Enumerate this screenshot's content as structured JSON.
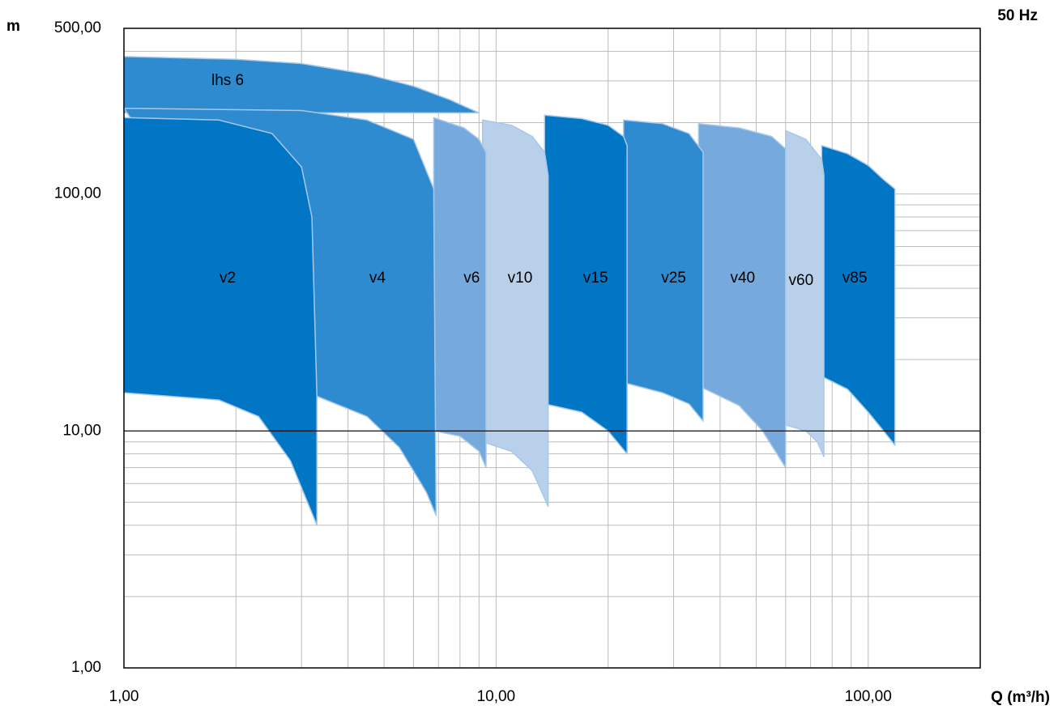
{
  "chart_data": {
    "type": "area",
    "title": "",
    "frequency_label": "50 Hz",
    "xlabel": "Q (m³/h)",
    "ylabel": "m",
    "xscale": "log",
    "yscale": "log",
    "xlim": [
      1,
      200
    ],
    "ylim": [
      1,
      500
    ],
    "x_tick_labels": [
      {
        "value": 1,
        "label": "1,00"
      },
      {
        "value": 10,
        "label": "10,00"
      },
      {
        "value": 100,
        "label": "100,00"
      }
    ],
    "y_tick_labels": [
      {
        "value": 1,
        "label": "1,00"
      },
      {
        "value": 10,
        "label": "10,00"
      },
      {
        "value": 100,
        "label": "100,00"
      },
      {
        "value": 500,
        "label": "500,00"
      }
    ],
    "grid": true,
    "colors": {
      "dark": "#0076c5",
      "medium": "#2f8bcf",
      "light": "#76a9dc",
      "pale": "#b9d0eb",
      "edge": "#a8c8ea"
    },
    "series": [
      {
        "name": "lhs 6",
        "color": "medium",
        "upper": [
          [
            1.0,
            380
          ],
          [
            2.0,
            370
          ],
          [
            3.0,
            355
          ],
          [
            4.5,
            320
          ],
          [
            6.0,
            285
          ],
          [
            7.5,
            250
          ],
          [
            9.0,
            220
          ]
        ],
        "lower": [
          [
            1.0,
            220
          ],
          [
            9.0,
            220
          ]
        ]
      },
      {
        "name": "v85",
        "color": "dark",
        "upper": [
          [
            75,
            160
          ],
          [
            88,
            148
          ],
          [
            100,
            132
          ],
          [
            110,
            115
          ],
          [
            118,
            105
          ]
        ],
        "lower": [
          [
            75,
            17
          ],
          [
            88,
            15
          ],
          [
            100,
            12
          ],
          [
            110,
            10
          ],
          [
            118,
            8.7
          ]
        ]
      },
      {
        "name": "v60",
        "color": "pale",
        "upper": [
          [
            60,
            185
          ],
          [
            68,
            170
          ],
          [
            75,
            140
          ],
          [
            76,
            120
          ]
        ],
        "lower": [
          [
            60,
            10.6
          ],
          [
            68,
            10.0
          ],
          [
            73,
            9.0
          ],
          [
            76,
            7.8
          ]
        ]
      },
      {
        "name": "v40",
        "color": "light",
        "upper": [
          [
            35,
            198
          ],
          [
            45,
            190
          ],
          [
            55,
            175
          ],
          [
            60,
            155
          ]
        ],
        "lower": [
          [
            35,
            15.5
          ],
          [
            45,
            12.8
          ],
          [
            52,
            10.0
          ],
          [
            60,
            7.0
          ]
        ]
      },
      {
        "name": "v25",
        "color": "medium",
        "upper": [
          [
            22,
            205
          ],
          [
            28,
            198
          ],
          [
            33,
            180
          ],
          [
            36,
            150
          ]
        ],
        "lower": [
          [
            22,
            16
          ],
          [
            28,
            14.5
          ],
          [
            33,
            13
          ],
          [
            36,
            11
          ]
        ]
      },
      {
        "name": "v15",
        "color": "dark",
        "upper": [
          [
            13.5,
            215
          ],
          [
            17,
            208
          ],
          [
            20,
            195
          ],
          [
            22,
            175
          ],
          [
            22.5,
            160
          ]
        ],
        "lower": [
          [
            13.5,
            13
          ],
          [
            17,
            12
          ],
          [
            20,
            10
          ],
          [
            22.5,
            8
          ]
        ]
      },
      {
        "name": "v10",
        "color": "pale",
        "upper": [
          [
            9.2,
            205
          ],
          [
            11,
            195
          ],
          [
            12.5,
            175
          ],
          [
            13.5,
            150
          ],
          [
            13.8,
            120
          ]
        ],
        "lower": [
          [
            9.2,
            9
          ],
          [
            11,
            8.2
          ],
          [
            12.5,
            6.8
          ],
          [
            13.5,
            5.2
          ],
          [
            13.8,
            4.8
          ]
        ]
      },
      {
        "name": "v6",
        "color": "light",
        "upper": [
          [
            6.8,
            210
          ],
          [
            8.2,
            190
          ],
          [
            9.0,
            170
          ],
          [
            9.4,
            150
          ]
        ],
        "lower": [
          [
            6.8,
            10
          ],
          [
            8.0,
            9.5
          ],
          [
            9.0,
            8.2
          ],
          [
            9.4,
            7.0
          ]
        ]
      },
      {
        "name": "v4",
        "color": "medium",
        "upper": [
          [
            1.0,
            230
          ],
          [
            3.0,
            225
          ],
          [
            4.5,
            205
          ],
          [
            6.0,
            170
          ],
          [
            6.8,
            105
          ]
        ],
        "lower": [
          [
            3.3,
            14
          ],
          [
            4.5,
            11.5
          ],
          [
            5.5,
            8.5
          ],
          [
            6.5,
            5.5
          ],
          [
            6.9,
            4.4
          ]
        ]
      },
      {
        "name": "v2",
        "color": "dark",
        "upper": [
          [
            1.0,
            210
          ],
          [
            1.8,
            205
          ],
          [
            2.5,
            180
          ],
          [
            3.0,
            130
          ],
          [
            3.2,
            80
          ],
          [
            3.3,
            14
          ]
        ],
        "lower": [
          [
            1.0,
            14.5
          ],
          [
            1.8,
            13.5
          ],
          [
            2.3,
            11.5
          ],
          [
            2.8,
            7.5
          ],
          [
            3.3,
            4.0
          ]
        ]
      }
    ],
    "series_labels": [
      {
        "name": "lhs 6",
        "text": "lhs 6",
        "x": 1.9,
        "y": 300
      },
      {
        "name": "v2",
        "text": "v2",
        "x": 1.9,
        "y": 44
      },
      {
        "name": "v4",
        "text": "v4",
        "x": 4.8,
        "y": 44
      },
      {
        "name": "v6",
        "text": "v6",
        "x": 8.6,
        "y": 44
      },
      {
        "name": "v10",
        "text": "v10",
        "x": 11.6,
        "y": 44
      },
      {
        "name": "v15",
        "text": "v15",
        "x": 18.5,
        "y": 44
      },
      {
        "name": "v25",
        "text": "v25",
        "x": 30,
        "y": 44
      },
      {
        "name": "v40",
        "text": "v40",
        "x": 46,
        "y": 44
      },
      {
        "name": "v60",
        "text": "v60",
        "x": 66,
        "y": 43
      },
      {
        "name": "v85",
        "text": "v85",
        "x": 92,
        "y": 44
      }
    ]
  }
}
